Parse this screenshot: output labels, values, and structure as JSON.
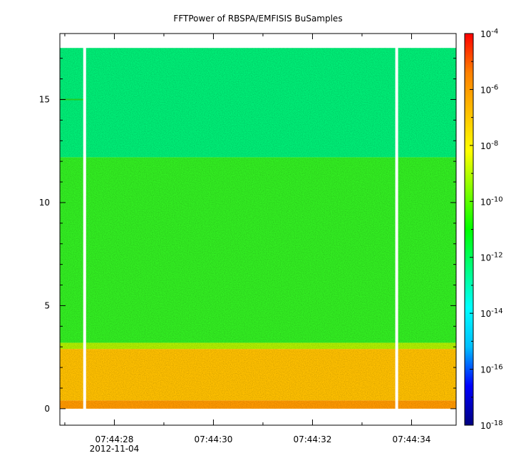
{
  "chart_data": {
    "type": "heatmap",
    "title": "FFTPower of RBSPA/EMFISIS  BuSamples",
    "xlabel": "",
    "ylabel": "",
    "x_axis": {
      "type": "time",
      "range": [
        "07:44:26.9",
        "07:44:34.9"
      ],
      "tick_labels": [
        "07:44:28",
        "07:44:30",
        "07:44:32",
        "07:44:34"
      ],
      "tick_values_s": [
        28,
        30,
        32,
        34
      ],
      "minor_tick_values_s": [
        27,
        29,
        31,
        33
      ],
      "date_label": "2012-11-04"
    },
    "y_axis": {
      "range": [
        -0.8,
        18.2
      ],
      "ticks": [
        0,
        5,
        10,
        15
      ],
      "tick_labels": [
        "0",
        "5",
        "10",
        "15"
      ]
    },
    "colorbar": {
      "scale": "log",
      "range": [
        1e-18,
        0.0001
      ],
      "tick_exponents": [
        -18,
        -16,
        -14,
        -12,
        -10,
        -8,
        -6,
        -4
      ],
      "tick_labels": [
        "10",
        "10",
        "10",
        "10",
        "10",
        "10",
        "10",
        "10"
      ],
      "tick_superscripts": [
        "-18",
        "-16",
        "-14",
        "-12",
        "-10",
        "-8",
        "-6",
        "-4"
      ],
      "colormap": [
        "#00007f",
        "#0000ff",
        "#00bfff",
        "#00ffff",
        "#00ff80",
        "#00ff00",
        "#80ff00",
        "#ffff00",
        "#ffbf00",
        "#ff8000",
        "#ff0000"
      ]
    },
    "data_extent": {
      "y_min": 0,
      "y_max": 17.5,
      "t_start_s": 26.9,
      "t_end_s": 34.9
    },
    "data_gaps_s": [
      27.4,
      33.7
    ],
    "bands": [
      {
        "y_from": 0,
        "y_to": 0.4,
        "log10_power": -7.3,
        "color": "#ff9900"
      },
      {
        "y_from": 0.4,
        "y_to": 2.9,
        "log10_power": -8.0,
        "color": "#ffc000"
      },
      {
        "y_from": 2.9,
        "y_to": 3.2,
        "log10_power": -9.0,
        "color": "#b0f000"
      },
      {
        "y_from": 3.2,
        "y_to": 12.2,
        "log10_power": -10.0,
        "color": "#33ee22"
      },
      {
        "y_from": 12.2,
        "y_to": 17.5,
        "log10_power": -11.2,
        "color": "#00ee77"
      }
    ],
    "annotations": [
      {
        "type": "line",
        "y": 15.0,
        "t_from_s": 26.9,
        "t_to_s": 27.4,
        "color": "#22cc22"
      }
    ]
  }
}
